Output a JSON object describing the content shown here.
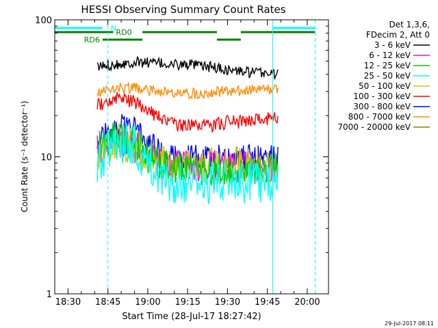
{
  "chart_data": {
    "type": "line",
    "title": "HESSI Observing Summary Count Rates",
    "xlabel": "Start Time (28-Jul-17 18:27:42)",
    "ylabel": "Count Rate (s⁻¹ detector⁻¹)",
    "yscale": "log",
    "ylim": [
      1,
      100
    ],
    "xlim": [
      "18:25",
      "20:08"
    ],
    "x_ticks": [
      "18:30",
      "18:45",
      "19:00",
      "19:15",
      "19:30",
      "19:45",
      "20:00"
    ],
    "y_ticks": [
      "1",
      "10",
      "100"
    ],
    "legend_header": [
      "Det 1,3,6,",
      "FDecim 2, Att 0"
    ],
    "legend_position": "right",
    "series": [
      {
        "name": "3 - 6 keV",
        "color": "#000000",
        "x": [
          "18:41",
          "18:45",
          "18:50",
          "18:55",
          "19:00",
          "19:05",
          "19:10",
          "19:15",
          "19:20",
          "19:25",
          "19:30",
          "19:35",
          "19:40",
          "19:45",
          "19:49"
        ],
        "y": [
          45,
          47,
          48,
          49,
          49,
          48,
          47,
          47,
          46,
          45,
          43,
          42,
          41,
          41,
          40
        ]
      },
      {
        "name": "6 - 12 keV",
        "color": "#ff00ff",
        "x": [
          "18:41",
          "18:45",
          "18:50",
          "18:55",
          "19:00",
          "19:05",
          "19:10",
          "19:15",
          "19:20",
          "19:25",
          "19:30",
          "19:35",
          "19:40",
          "19:45",
          "19:49"
        ],
        "y": [
          11,
          12,
          13,
          12,
          10,
          9,
          8.5,
          8.5,
          8.5,
          8.5,
          8.5,
          8.5,
          8.5,
          8.5,
          8.5
        ]
      },
      {
        "name": "12 - 25 keV",
        "color": "#00cc00",
        "x": [
          "18:41",
          "18:45",
          "18:50",
          "18:55",
          "19:00",
          "19:05",
          "19:10",
          "19:15",
          "19:20",
          "19:25",
          "19:30",
          "19:35",
          "19:40",
          "19:45",
          "19:49"
        ],
        "y": [
          12,
          13,
          14,
          13,
          10,
          9,
          8.5,
          8,
          8,
          8,
          8,
          8,
          8,
          8,
          8
        ]
      },
      {
        "name": "25 - 50 keV",
        "color": "#00ffff",
        "x": [
          "18:41",
          "18:45",
          "18:50",
          "18:55",
          "19:00",
          "19:05",
          "19:10",
          "19:15",
          "19:20",
          "19:25",
          "19:30",
          "19:35",
          "19:40",
          "19:45",
          "19:49"
        ],
        "y": [
          9,
          11,
          13,
          12,
          9,
          7,
          6.5,
          6.5,
          6.5,
          6.5,
          6.5,
          6.5,
          6.5,
          6.5,
          6.5
        ]
      },
      {
        "name": "50 - 100 keV",
        "color": "#cccc00",
        "x": [
          "18:41",
          "18:45",
          "18:50",
          "18:55",
          "19:00",
          "19:05",
          "19:10",
          "19:15",
          "19:20",
          "19:25",
          "19:30",
          "19:35",
          "19:40",
          "19:45",
          "19:49"
        ],
        "y": [
          11,
          12,
          13,
          12,
          10,
          9,
          8.5,
          8.5,
          8.5,
          8.5,
          8.5,
          8.5,
          8.5,
          8.5,
          8.5
        ]
      },
      {
        "name": "100 - 300 keV",
        "color": "#ff0000",
        "x": [
          "18:41",
          "18:45",
          "18:50",
          "18:55",
          "19:00",
          "19:05",
          "19:10",
          "19:15",
          "19:20",
          "19:25",
          "19:30",
          "19:35",
          "19:40",
          "19:45",
          "19:49"
        ],
        "y": [
          24,
          25,
          27,
          25,
          22,
          19,
          17,
          17,
          17,
          17,
          18,
          18,
          19,
          19,
          19
        ]
      },
      {
        "name": "300 - 800 keV",
        "color": "#0000ff",
        "x": [
          "18:41",
          "18:45",
          "18:50",
          "18:55",
          "19:00",
          "19:05",
          "19:10",
          "19:15",
          "19:20",
          "19:25",
          "19:30",
          "19:35",
          "19:40",
          "19:45",
          "19:49"
        ],
        "y": [
          13,
          15,
          17,
          16,
          13,
          11,
          10,
          10,
          10,
          10,
          10,
          10,
          10,
          10,
          10
        ]
      },
      {
        "name": "800 - 7000 keV",
        "color": "#ff8c00",
        "x": [
          "18:41",
          "18:45",
          "18:50",
          "18:55",
          "19:00",
          "19:05",
          "19:10",
          "19:15",
          "19:20",
          "19:25",
          "19:30",
          "19:35",
          "19:40",
          "19:45",
          "19:49"
        ],
        "y": [
          30,
          31,
          32,
          32,
          31,
          30,
          29,
          29,
          29,
          30,
          30,
          30,
          31,
          31,
          31
        ]
      },
      {
        "name": "7000 - 20000 keV",
        "color": "#808000",
        "x": [],
        "y": []
      }
    ],
    "vlines": [
      {
        "x": "18:25",
        "color": "#00ffff",
        "style": "solid"
      },
      {
        "x": "18:45",
        "color": "#00ffff",
        "style": "dashed"
      },
      {
        "x": "19:47",
        "color": "#00ffff",
        "style": "solid"
      },
      {
        "x": "20:03",
        "color": "#00ffff",
        "style": "dashed"
      }
    ],
    "status_bars": [
      {
        "label": "N",
        "color": "#00ffff",
        "segments": [
          [
            "18:25",
            "18:43"
          ],
          [
            "19:47",
            "20:03"
          ]
        ]
      },
      {
        "label": "RD0",
        "color": "#008000",
        "segments": [
          [
            "18:25",
            "18:47"
          ],
          [
            "18:58",
            "19:26"
          ],
          [
            "19:35",
            "20:03"
          ]
        ]
      },
      {
        "label": "RD6",
        "color": "#008000",
        "segments": [
          [
            "18:43",
            "18:58"
          ],
          [
            "19:26",
            "19:35"
          ]
        ]
      }
    ]
  },
  "footer": {
    "timestamp": "29-Jul-2017 08:11"
  }
}
